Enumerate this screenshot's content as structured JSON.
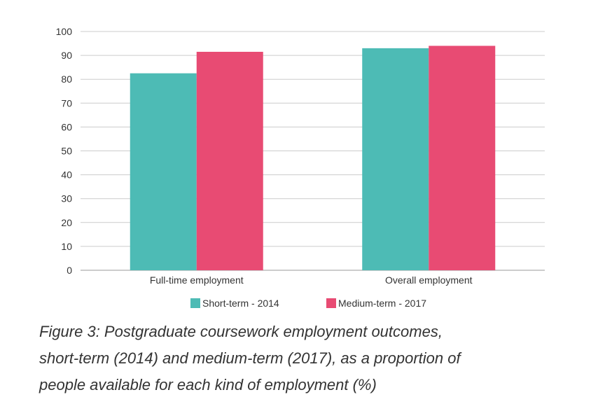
{
  "chart_data": {
    "type": "bar",
    "categories": [
      "Full-time employment",
      "Overall employment"
    ],
    "series": [
      {
        "name": "Short-term - 2014",
        "values": [
          82.5,
          93
        ],
        "color": "#4dbbb5"
      },
      {
        "name": "Medium-term - 2017",
        "values": [
          91.5,
          94
        ],
        "color": "#e84b73"
      }
    ],
    "ylim": [
      0,
      100
    ],
    "yticks": [
      0,
      10,
      20,
      30,
      40,
      50,
      60,
      70,
      80,
      90,
      100
    ],
    "grid": true,
    "legend_position": "bottom",
    "xlabel": "",
    "ylabel": ""
  },
  "caption": {
    "line1": "Figure 3: Postgraduate coursework employment outcomes,",
    "line2": "short-term (2014) and medium-term (2017), as a proportion of",
    "line3": "people available for each kind of employment (%)"
  }
}
